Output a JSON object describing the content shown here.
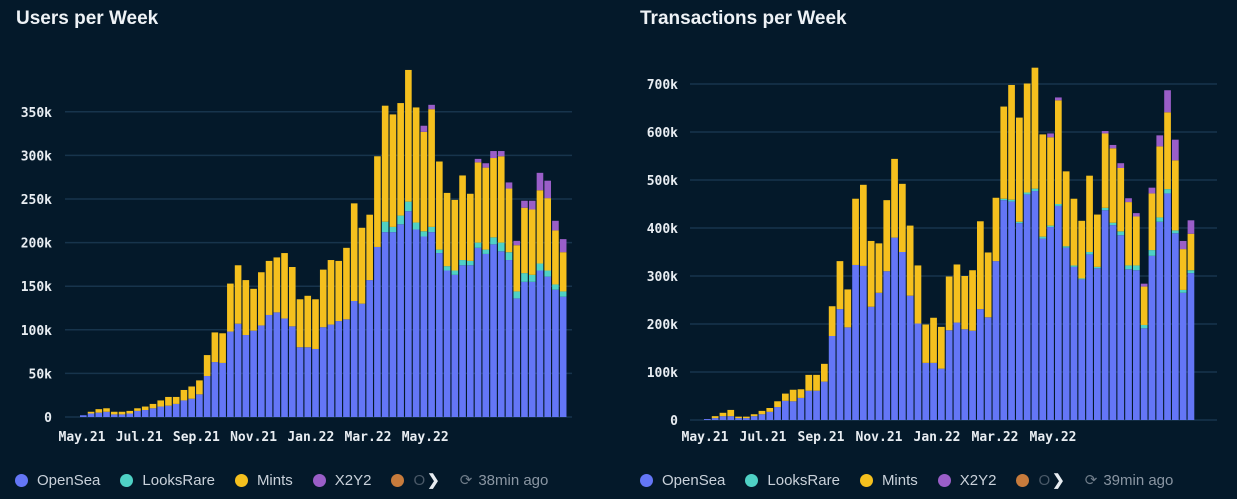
{
  "colors": {
    "OpenSea": "#6476f6",
    "LooksRare": "#4fd1c5",
    "Mints": "#f5c01e",
    "X2Y2": "#9a5ec8",
    "Other": "#c77b3c",
    "grid": "#17344c"
  },
  "left_panel": {
    "title": "Users per Week",
    "legend": [
      "OpenSea",
      "LooksRare",
      "Mints",
      "X2Y2",
      "O"
    ],
    "updated": "38min ago"
  },
  "right_panel": {
    "title": "Transactions per Week",
    "legend": [
      "OpenSea",
      "LooksRare",
      "Mints",
      "X2Y2",
      "O"
    ],
    "updated": "39min ago"
  },
  "chart_data": [
    {
      "type": "bar",
      "stacked": true,
      "title": "Users per Week",
      "unit": "k",
      "yticks": [
        "0",
        "50k",
        "100k",
        "150k",
        "200k",
        "250k",
        "300k",
        "350k"
      ],
      "ytick_values": [
        0,
        50,
        100,
        150,
        200,
        250,
        300,
        350
      ],
      "ylim": [
        0,
        400
      ],
      "xticks": [
        "May.21",
        "Jul.21",
        "Sep.21",
        "Nov.21",
        "Jan.22",
        "Mar.22",
        "May.22"
      ],
      "grid": true,
      "legend_position": "bottom",
      "series": [
        {
          "name": "OpenSea",
          "values": [
            2,
            4,
            5,
            6,
            3,
            3,
            4,
            7,
            8,
            10,
            12,
            13,
            15,
            19,
            21,
            26,
            47,
            63,
            62,
            98,
            107,
            94,
            99,
            105,
            117,
            120,
            113,
            104,
            80,
            80,
            78,
            103,
            106,
            110,
            112,
            133,
            130,
            157,
            195,
            212,
            212,
            221,
            236,
            215,
            207,
            212,
            188,
            168,
            163,
            174,
            174,
            194,
            187,
            198,
            190,
            180,
            136,
            155,
            155,
            168,
            161,
            146,
            138
          ]
        },
        {
          "name": "LooksRare",
          "values": [
            0,
            0,
            0,
            0,
            0,
            0,
            0,
            0,
            0,
            0,
            0,
            0,
            0,
            0,
            0,
            0,
            0,
            0,
            0,
            0,
            0,
            0,
            0,
            0,
            0,
            0,
            0,
            0,
            0,
            0,
            0,
            0,
            0,
            0,
            0,
            0,
            0,
            0,
            0,
            12,
            6,
            10,
            11,
            8,
            6,
            6,
            4,
            5,
            5,
            6,
            5,
            6,
            5,
            8,
            10,
            9,
            8,
            10,
            8,
            8,
            7,
            6,
            6
          ]
        },
        {
          "name": "Mints",
          "values": [
            0,
            2,
            4,
            4,
            3,
            3,
            3,
            3,
            4,
            5,
            7,
            10,
            8,
            12,
            14,
            16,
            24,
            34,
            34,
            55,
            67,
            63,
            48,
            61,
            62,
            63,
            75,
            68,
            55,
            59,
            57,
            66,
            74,
            69,
            82,
            112,
            87,
            75,
            104,
            133,
            129,
            129,
            151,
            132,
            114,
            135,
            101,
            84,
            81,
            97,
            77,
            92,
            94,
            91,
            99,
            73,
            53,
            75,
            75,
            84,
            83,
            62,
            45
          ]
        },
        {
          "name": "X2Y2",
          "values": [
            0,
            0,
            0,
            0,
            0,
            0,
            0,
            0,
            0,
            0,
            0,
            0,
            0,
            0,
            0,
            0,
            0,
            0,
            0,
            0,
            0,
            0,
            0,
            0,
            0,
            0,
            0,
            0,
            0,
            0,
            0,
            0,
            0,
            0,
            0,
            0,
            0,
            0,
            0,
            0,
            0,
            0,
            0,
            0,
            7,
            5,
            0,
            0,
            0,
            0,
            0,
            4,
            5,
            8,
            6,
            7,
            5,
            8,
            10,
            20,
            20,
            11,
            15
          ]
        }
      ]
    },
    {
      "type": "bar",
      "stacked": true,
      "title": "Transactions per Week",
      "unit": "k",
      "yticks": [
        "0",
        "100k",
        "200k",
        "300k",
        "400k",
        "500k",
        "600k",
        "700k"
      ],
      "ytick_values": [
        0,
        100,
        200,
        300,
        400,
        500,
        600,
        700
      ],
      "ylim": [
        0,
        750
      ],
      "xticks": [
        "May.21",
        "Jul.21",
        "Sep.21",
        "Nov.21",
        "Jan.22",
        "Mar.22",
        "May.22"
      ],
      "grid": true,
      "legend_position": "bottom",
      "series": [
        {
          "name": "OpenSea",
          "values": [
            2,
            4,
            8,
            8,
            4,
            4,
            8,
            12,
            17,
            27,
            40,
            39,
            46,
            61,
            61,
            80,
            175,
            231,
            193,
            323,
            321,
            236,
            265,
            310,
            380,
            350,
            259,
            201,
            119,
            119,
            107,
            187,
            203,
            189,
            186,
            231,
            214,
            331,
            458,
            455,
            410,
            470,
            477,
            378,
            402,
            446,
            359,
            319,
            293,
            345,
            316,
            437,
            406,
            385,
            314,
            312,
            191,
            342,
            413,
            472,
            389,
            265,
            306
          ]
        },
        {
          "name": "LooksRare",
          "values": [
            0,
            0,
            0,
            0,
            0,
            0,
            0,
            0,
            0,
            0,
            0,
            0,
            0,
            0,
            0,
            0,
            0,
            0,
            0,
            0,
            0,
            0,
            0,
            0,
            0,
            0,
            0,
            0,
            0,
            0,
            0,
            0,
            0,
            0,
            0,
            0,
            0,
            0,
            3,
            4,
            3,
            4,
            5,
            4,
            3,
            4,
            3,
            3,
            2,
            5,
            3,
            5,
            5,
            8,
            8,
            10,
            7,
            12,
            9,
            9,
            6,
            6,
            6
          ]
        },
        {
          "name": "Mints",
          "values": [
            0,
            4,
            7,
            13,
            3,
            3,
            4,
            7,
            8,
            12,
            15,
            24,
            18,
            33,
            33,
            37,
            62,
            100,
            79,
            138,
            169,
            137,
            103,
            148,
            164,
            142,
            146,
            121,
            80,
            94,
            87,
            112,
            121,
            111,
            126,
            183,
            135,
            132,
            192,
            239,
            217,
            227,
            252,
            213,
            184,
            216,
            156,
            139,
            120,
            159,
            109,
            155,
            155,
            132,
            132,
            102,
            80,
            118,
            148,
            160,
            146,
            85,
            76
          ]
        },
        {
          "name": "X2Y2",
          "values": [
            0,
            0,
            0,
            0,
            0,
            0,
            0,
            0,
            0,
            0,
            0,
            0,
            0,
            0,
            0,
            0,
            0,
            0,
            0,
            0,
            0,
            0,
            0,
            0,
            0,
            0,
            0,
            0,
            0,
            0,
            0,
            0,
            0,
            0,
            0,
            0,
            0,
            0,
            0,
            0,
            0,
            0,
            0,
            0,
            8,
            6,
            0,
            0,
            0,
            0,
            0,
            5,
            7,
            10,
            8,
            7,
            6,
            12,
            23,
            46,
            43,
            17,
            28
          ]
        }
      ]
    }
  ]
}
